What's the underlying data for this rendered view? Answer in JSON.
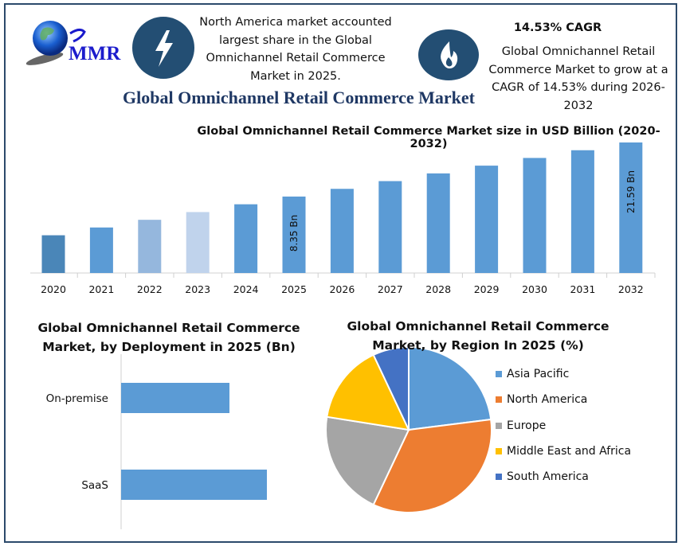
{
  "logo": {
    "text": "MMR"
  },
  "callout_left": {
    "icon": "lightning-icon",
    "lines": [
      "North America market accounted",
      "largest share in the Global",
      "Omnichannel Retail Commerce",
      "Market in 2025."
    ]
  },
  "callout_right": {
    "icon": "flame-icon",
    "headline": "14.53% CAGR",
    "lines": [
      "Global Omnichannel Retail",
      "Commerce Market to grow at a",
      "CAGR of 14.53% during 2026-",
      "2032"
    ]
  },
  "main_title": "Global Omnichannel Retail Commerce Market",
  "colors": {
    "frame": "#2c4a6b",
    "icon_bg": "#234e73",
    "title": "#1f3864"
  },
  "chart_data": [
    {
      "type": "bar",
      "title": "Global Omnichannel Retail Commerce Market size in USD Billion (2020-2032)",
      "categories": [
        "2020",
        "2021",
        "2022",
        "2023",
        "2024",
        "2025",
        "2026",
        "2027",
        "2028",
        "2029",
        "2030",
        "2031",
        "2032"
      ],
      "values": [
        4.23,
        4.85,
        5.55,
        6.36,
        7.29,
        8.35,
        9.56,
        10.95,
        12.54,
        14.37,
        16.45,
        18.84,
        21.59
      ],
      "data_labels": {
        "2025": "8.35 Bn",
        "2032": "21.59 Bn"
      },
      "bar_colors": [
        "#4a86b8",
        "#5b9bd5",
        "#95b7dd",
        "#c0d3ec",
        "#5b9bd5",
        "#5b9bd5",
        "#5b9bd5",
        "#5b9bd5",
        "#5b9bd5",
        "#5b9bd5",
        "#5b9bd5",
        "#5b9bd5",
        "#5b9bd5"
      ],
      "yscale": "log",
      "ylim": [
        2.18,
        21.59
      ],
      "grid": false,
      "xlabel": "",
      "ylabel": ""
    },
    {
      "type": "bar",
      "orientation": "horizontal",
      "title_lines": [
        "Global Omnichannel Retail Commerce",
        "Market, by Deployment in 2025 (Bn)"
      ],
      "categories": [
        "On-premise",
        "SaaS"
      ],
      "values": [
        3.56,
        4.79
      ],
      "color": "#5b9bd5",
      "grid": false
    },
    {
      "type": "pie",
      "title_lines": [
        "Global Omnichannel Retail Commerce",
        "Market, by Region In 2025 (%)"
      ],
      "categories": [
        "Asia Pacific",
        "North America",
        "Europe",
        "Middle East and Africa",
        "South America"
      ],
      "values": [
        23,
        34,
        20.5,
        15.5,
        7
      ],
      "colors": [
        "#5b9bd5",
        "#ed7d31",
        "#a5a5a5",
        "#ffc000",
        "#4472c4"
      ],
      "legend": "right"
    }
  ]
}
